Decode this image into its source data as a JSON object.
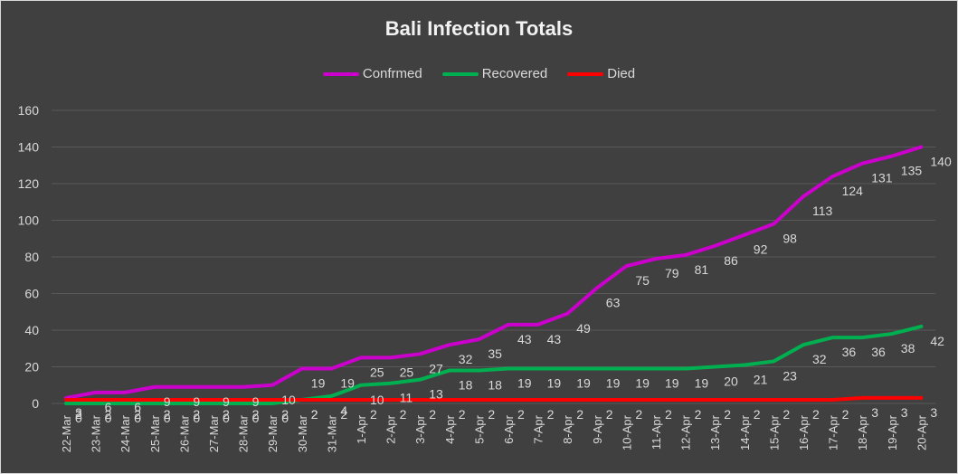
{
  "chart_data": {
    "type": "line",
    "title": "Bali Infection Totals",
    "xlabel": "",
    "ylabel": "",
    "ylim": [
      0,
      160
    ],
    "yticks": [
      0,
      20,
      40,
      60,
      80,
      100,
      120,
      140,
      160
    ],
    "grid": true,
    "legend_position": "top",
    "categories": [
      "22-Mar",
      "23-Mar",
      "24-Mar",
      "25-Mar",
      "26-Mar",
      "27-Mar",
      "28-Mar",
      "29-Mar",
      "30-Mar",
      "31-Mar",
      "1-Apr",
      "2-Apr",
      "3-Apr",
      "4-Apr",
      "5-Apr",
      "6-Apr",
      "7-Apr",
      "8-Apr",
      "9-Apr",
      "10-Apr",
      "11-Apr",
      "12-Apr",
      "13-Apr",
      "14-Apr",
      "15-Apr",
      "16-Apr",
      "17-Apr",
      "18-Apr",
      "19-Apr",
      "20-Apr"
    ],
    "series": [
      {
        "name": "Confrmed",
        "color": "#cc00cc",
        "values": [
          3,
          6,
          6,
          9,
          9,
          9,
          9,
          10,
          19,
          19,
          25,
          25,
          27,
          32,
          35,
          43,
          43,
          49,
          63,
          75,
          79,
          81,
          86,
          92,
          98,
          113,
          124,
          131,
          135,
          140
        ]
      },
      {
        "name": "Recovered",
        "color": "#00b050",
        "values": [
          0,
          0,
          0,
          0,
          0,
          0,
          0,
          0,
          2,
          4,
          10,
          11,
          13,
          18,
          18,
          19,
          19,
          19,
          19,
          19,
          19,
          19,
          20,
          21,
          23,
          32,
          36,
          36,
          38,
          42
        ]
      },
      {
        "name": "Died",
        "color": "#ff0000",
        "values": [
          2,
          2,
          2,
          2,
          2,
          2,
          2,
          2,
          2,
          2,
          2,
          2,
          2,
          2,
          2,
          2,
          2,
          2,
          2,
          2,
          2,
          2,
          2,
          2,
          2,
          2,
          2,
          3,
          3,
          3
        ]
      }
    ]
  }
}
